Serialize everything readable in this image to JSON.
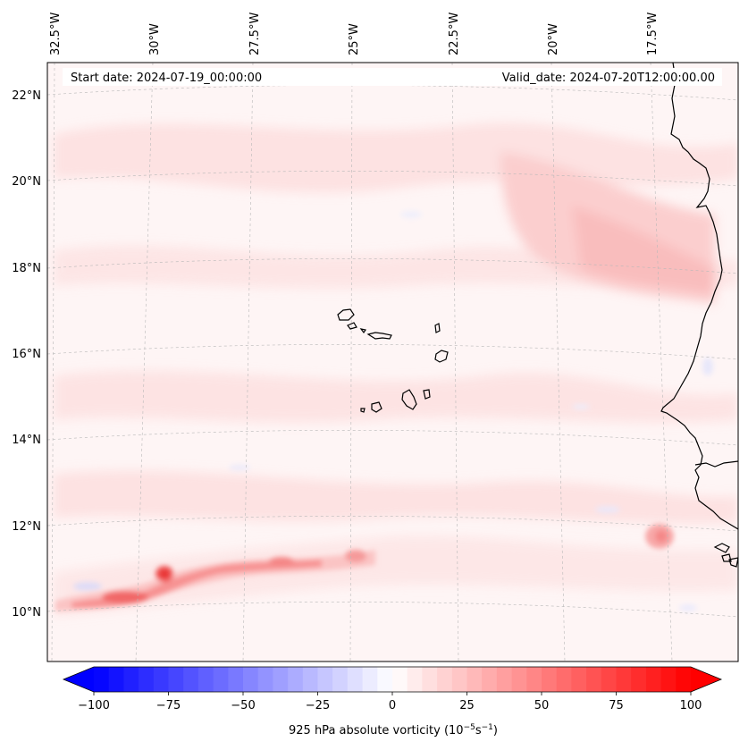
{
  "header": {
    "start_date": "Start date: 2024-07-19_00:00:00",
    "valid_date": "Valid_date: 2024-07-20T12:00:00.00"
  },
  "map": {
    "lon_labels": [
      "32.5°W",
      "30°W",
      "27.5°W",
      "25°W",
      "22.5°W",
      "20°W",
      "17.5°W"
    ],
    "lat_labels": [
      "22°N",
      "20°N",
      "18°N",
      "16°N",
      "14°N",
      "12°N",
      "10°N"
    ],
    "gridlines": "on",
    "coastline_color": "#000000"
  },
  "colorbar": {
    "label": "925 hPa absolute vorticity (10$^{-5}$s$^{-1}$)",
    "label_main": "925 hPa absolute vorticity (10",
    "label_exp1": "−5",
    "label_mid": "s",
    "label_exp2": "−1",
    "label_end": ")",
    "ticks": [
      "−100",
      "−75",
      "−50",
      "−25",
      "0",
      "25",
      "50",
      "75",
      "100"
    ],
    "tick_values": [
      -100,
      -75,
      -50,
      -25,
      0,
      25,
      50,
      75,
      100
    ],
    "range": [
      -100,
      100
    ],
    "levels": 41,
    "cmap": "bwr",
    "extend": "both",
    "min_color": "#0000ff",
    "mid_color": "#ffffff",
    "max_color": "#ff0000"
  }
}
